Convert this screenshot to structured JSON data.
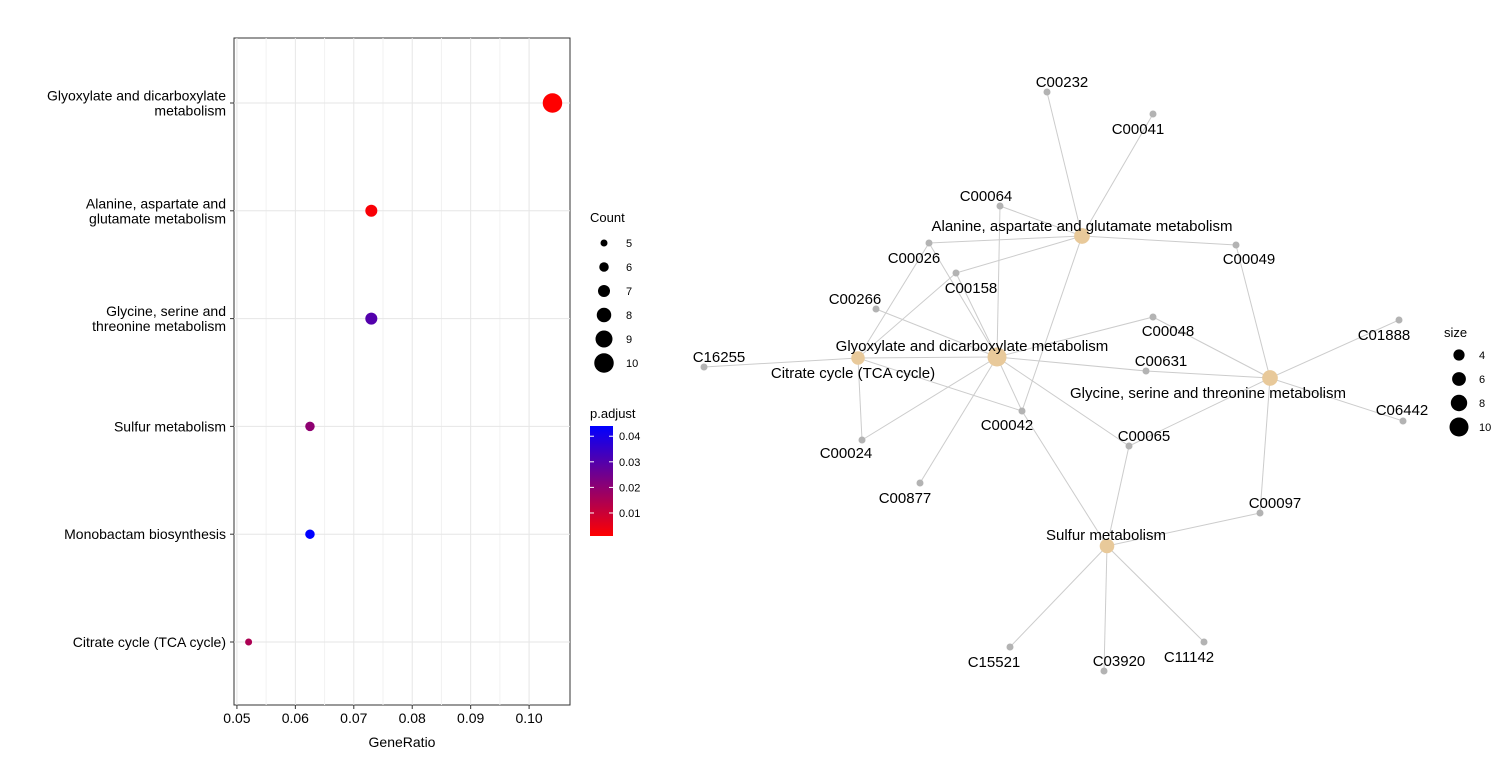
{
  "dotplot": {
    "chart_data": {
      "type": "scatter",
      "xlabel": "GeneRatio",
      "xlim": [
        0.0495,
        0.107
      ],
      "x_ticks": [
        "0.05",
        "0.06",
        "0.07",
        "0.08",
        "0.09",
        "0.10"
      ],
      "grid": true,
      "points": [
        {
          "label": [
            "Glyoxylate and dicarboxylate",
            "metabolism"
          ],
          "x": 0.104,
          "count": 10,
          "p_adjust": 0.001
        },
        {
          "label": [
            "Alanine, aspartate and",
            "glutamate metabolism"
          ],
          "x": 0.073,
          "count": 7,
          "p_adjust": 0.002
        },
        {
          "label": [
            "Glycine, serine and",
            "threonine metabolism"
          ],
          "x": 0.073,
          "count": 7,
          "p_adjust": 0.03
        },
        {
          "label": [
            "Sulfur metabolism"
          ],
          "x": 0.0625,
          "count": 6,
          "p_adjust": 0.02
        },
        {
          "label": [
            "Monobactam biosynthesis"
          ],
          "x": 0.0625,
          "count": 6,
          "p_adjust": 0.044
        },
        {
          "label": [
            "Citrate cycle (TCA cycle)"
          ],
          "x": 0.052,
          "count": 5,
          "p_adjust": 0.015
        }
      ],
      "legend_count": {
        "title": "Count",
        "values": [
          5,
          6,
          7,
          8,
          9,
          10
        ]
      },
      "legend_color": {
        "title": "p.adjust",
        "ticks": [
          "0.04",
          "0.03",
          "0.02",
          "0.01"
        ],
        "low_color": "#ff0000",
        "high_color": "#0000ff",
        "range": [
          0.001,
          0.044
        ]
      }
    }
  },
  "network": {
    "legend_size": {
      "title": "size",
      "values": [
        4,
        6,
        8,
        10
      ]
    },
    "category_color": "#e8c99a",
    "gene_color": "#b3b3b3",
    "edge_color": "#cccccc",
    "categories": [
      {
        "id": "ala",
        "label": "Alanine, aspartate and glutamate metabolism",
        "size": 7
      },
      {
        "id": "gly",
        "label": "Glyoxylate and dicarboxylate metabolism",
        "size": 10
      },
      {
        "id": "tca",
        "label": "Citrate cycle (TCA cycle)",
        "size": 5
      },
      {
        "id": "gsm",
        "label": "Glycine, serine and threonine metabolism",
        "size": 7
      },
      {
        "id": "sul",
        "label": "Sulfur metabolism",
        "size": 6
      }
    ],
    "genes": [
      {
        "id": "C00232"
      },
      {
        "id": "C00041"
      },
      {
        "id": "C00064"
      },
      {
        "id": "C00026"
      },
      {
        "id": "C00049"
      },
      {
        "id": "C00158"
      },
      {
        "id": "C00266"
      },
      {
        "id": "C00048"
      },
      {
        "id": "C01888"
      },
      {
        "id": "C16255"
      },
      {
        "id": "C00631"
      },
      {
        "id": "C06442"
      },
      {
        "id": "C00042"
      },
      {
        "id": "C00065"
      },
      {
        "id": "C00024"
      },
      {
        "id": "C00877"
      },
      {
        "id": "C00097"
      },
      {
        "id": "C15521"
      },
      {
        "id": "C03920"
      },
      {
        "id": "C11142"
      }
    ],
    "edges": [
      [
        "ala",
        "C00232"
      ],
      [
        "ala",
        "C00041"
      ],
      [
        "ala",
        "C00064"
      ],
      [
        "ala",
        "C00026"
      ],
      [
        "ala",
        "C00049"
      ],
      [
        "ala",
        "C00158"
      ],
      [
        "ala",
        "C00042"
      ],
      [
        "gly",
        "C00064"
      ],
      [
        "gly",
        "C00026"
      ],
      [
        "gly",
        "C00158"
      ],
      [
        "gly",
        "C00266"
      ],
      [
        "gly",
        "C00048"
      ],
      [
        "gly",
        "C00631"
      ],
      [
        "gly",
        "C00042"
      ],
      [
        "gly",
        "C00065"
      ],
      [
        "gly",
        "C00024"
      ],
      [
        "gly",
        "C00877"
      ],
      [
        "gly",
        "tca"
      ],
      [
        "tca",
        "C16255"
      ],
      [
        "tca",
        "C00026"
      ],
      [
        "tca",
        "C00158"
      ],
      [
        "tca",
        "C00024"
      ],
      [
        "tca",
        "C00042"
      ],
      [
        "gsm",
        "C00049"
      ],
      [
        "gsm",
        "C00048"
      ],
      [
        "gsm",
        "C00631"
      ],
      [
        "gsm",
        "C01888"
      ],
      [
        "gsm",
        "C06442"
      ],
      [
        "gsm",
        "C00065"
      ],
      [
        "gsm",
        "C00097"
      ],
      [
        "sul",
        "C00042"
      ],
      [
        "sul",
        "C00065"
      ],
      [
        "sul",
        "C00097"
      ],
      [
        "sul",
        "C15521"
      ],
      [
        "sul",
        "C03920"
      ],
      [
        "sul",
        "C11142"
      ]
    ]
  }
}
